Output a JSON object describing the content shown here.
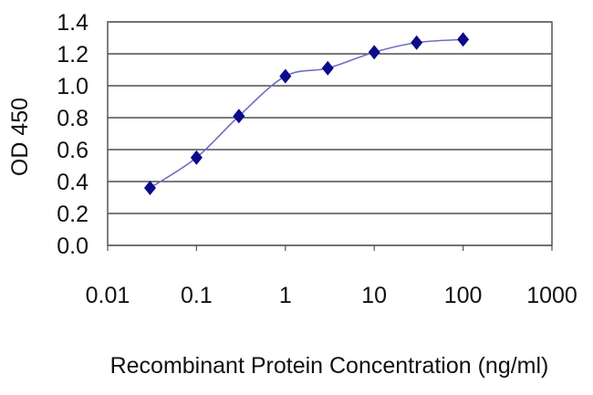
{
  "chart_data": {
    "type": "scatter",
    "xlabel": "Recombinant Protein Concentration (ng/ml)",
    "ylabel": "OD 450",
    "x_scale": "log",
    "xlim": [
      0.01,
      1000
    ],
    "ylim": [
      0,
      1.4
    ],
    "x_ticks": [
      "0.01",
      "0.1",
      "1",
      "10",
      "100",
      "1000"
    ],
    "y_ticks": [
      "0.0",
      "0.2",
      "0.4",
      "0.6",
      "0.8",
      "1.0",
      "1.2",
      "1.4"
    ],
    "grid": true,
    "legend": "none",
    "series": [
      {
        "x": [
          0.03,
          0.1,
          0.3,
          1,
          3,
          10,
          30,
          100
        ],
        "y": [
          0.36,
          0.55,
          0.81,
          1.06,
          1.11,
          1.21,
          1.27,
          1.29
        ],
        "marker": "diamond",
        "marker_color": "#0b0b8c",
        "line_color": "#6f6fbf",
        "fitted_curve": true
      }
    ]
  }
}
